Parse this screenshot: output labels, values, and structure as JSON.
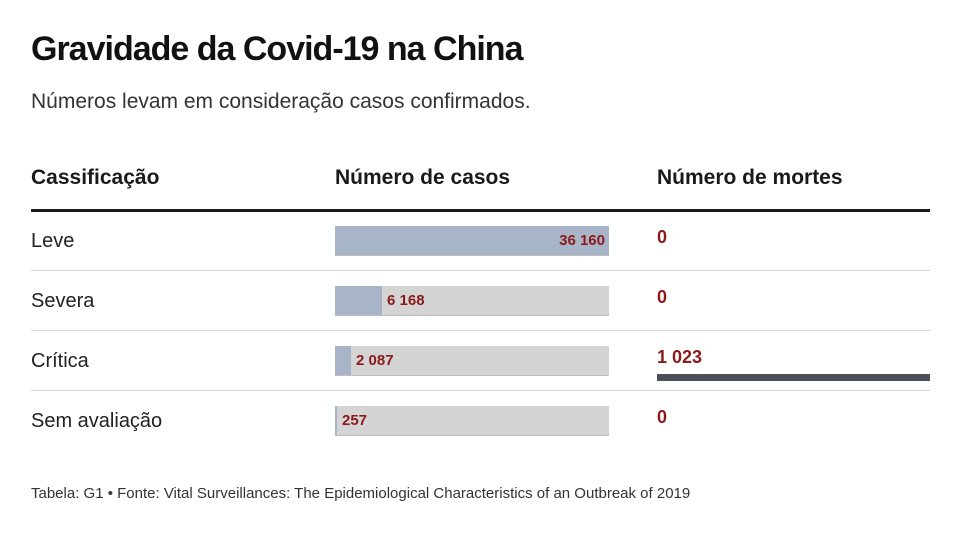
{
  "title": "Gravidade da Covid-19 na China",
  "subtitle": "Números levam em consideração casos confirmados.",
  "headers": {
    "classification": "Cassificação",
    "cases": "Número de casos",
    "deaths": "Número de mortes"
  },
  "source": "Tabela: G1 • Fonte: Vital Surveillances: The Epidemiological Characteristics of an Outbreak of 2019",
  "colors": {
    "case_bar": "#a8b4c8",
    "track": "#d4d4d4",
    "value_text": "#8b1a1a",
    "death_bar": "#4b5058"
  },
  "chart_data": {
    "type": "table",
    "columns": [
      "Cassificação",
      "Número de casos",
      "Número de mortes"
    ],
    "rows": [
      {
        "label": "Leve",
        "cases": 36160,
        "cases_label": "36 160",
        "deaths": 0,
        "deaths_label": "0"
      },
      {
        "label": "Severa",
        "cases": 6168,
        "cases_label": "6 168",
        "deaths": 0,
        "deaths_label": "0"
      },
      {
        "label": "Crítica",
        "cases": 2087,
        "cases_label": "2 087",
        "deaths": 1023,
        "deaths_label": "1 023"
      },
      {
        "label": "Sem avaliação",
        "cases": 257,
        "cases_label": "257",
        "deaths": 0,
        "deaths_label": "0"
      }
    ],
    "cases_max": 36160,
    "deaths_max": 1023
  }
}
